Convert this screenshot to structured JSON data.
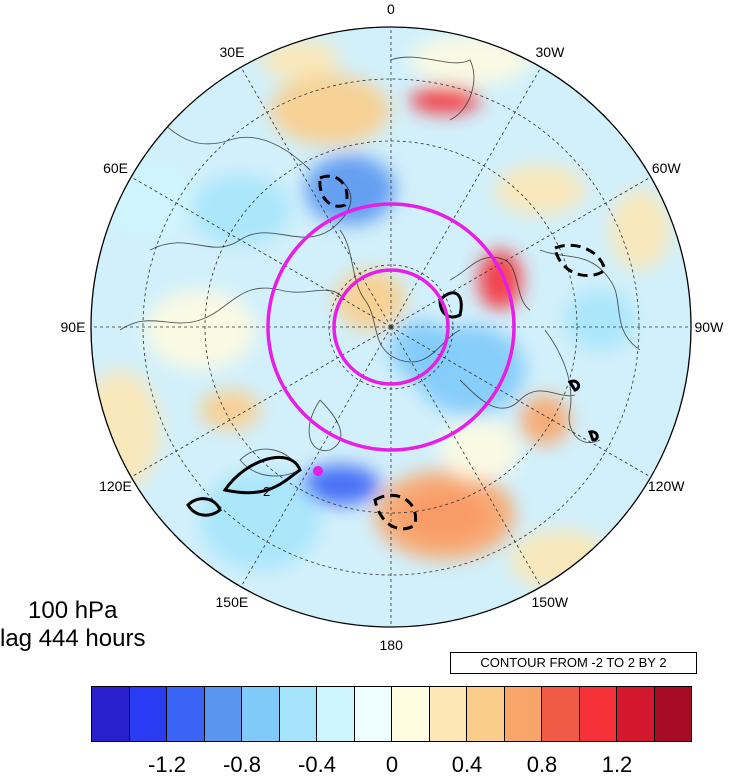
{
  "map": {
    "projection": "north polar stereographic",
    "longitude_labels": [
      {
        "text": "0",
        "lon": 0
      },
      {
        "text": "30W",
        "lon": -30
      },
      {
        "text": "60W",
        "lon": -60
      },
      {
        "text": "90W",
        "lon": -90
      },
      {
        "text": "120W",
        "lon": -120
      },
      {
        "text": "150W",
        "lon": -150
      },
      {
        "text": "180",
        "lon": 180
      },
      {
        "text": "150E",
        "lon": 150
      },
      {
        "text": "120E",
        "lon": 120
      },
      {
        "text": "90E",
        "lon": 90
      },
      {
        "text": "60E",
        "lon": 60
      },
      {
        "text": "30E",
        "lon": 30
      }
    ],
    "overlay_circle_color": "#e61ee6",
    "marker_color": "#e61ee6",
    "contour_color": "#000000"
  },
  "panel": {
    "level": "100 hPa",
    "lag": "lag 444 hours",
    "contour_note": "CONTOUR FROM -2 TO 2 BY 2",
    "contour_inline_label": "2"
  },
  "colorbar": {
    "colors": [
      "#2a1fcd",
      "#2a3bf4",
      "#3a64f5",
      "#5a96f0",
      "#80caf9",
      "#a6e4fb",
      "#cdf5fd",
      "#eefdfe",
      "#fefbe1",
      "#fde7b4",
      "#fbcd8a",
      "#f9a56a",
      "#f05a46",
      "#f53238",
      "#d3172d",
      "#a60a24"
    ],
    "labels": [
      "-1.2",
      "-0.8",
      "-0.4",
      "0",
      "0.4",
      "0.8",
      "1.2"
    ],
    "label_values": [
      -1.2,
      -0.8,
      -0.4,
      0,
      0.4,
      0.8,
      1.2
    ],
    "min": -1.6,
    "step": 0.2
  }
}
